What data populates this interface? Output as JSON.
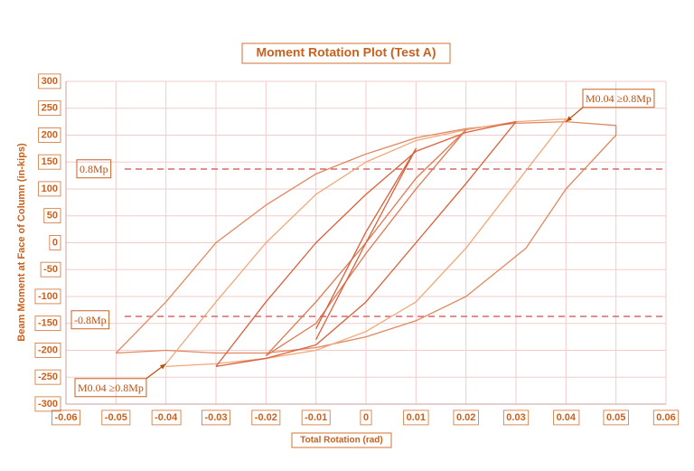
{
  "chart_data": {
    "type": "line",
    "title": "Moment Rotation Plot (Test A)",
    "xlabel": "Total Rotation (rad)",
    "ylabel": "Beam Moment at Face of Column (in-kips)",
    "xlim": [
      -0.06,
      0.06
    ],
    "ylim": [
      -300,
      300
    ],
    "xticks": [
      -0.06,
      -0.05,
      -0.04,
      -0.03,
      -0.02,
      -0.01,
      0,
      0.01,
      0.02,
      0.03,
      0.04,
      0.05,
      0.06
    ],
    "yticks": [
      -300,
      -250,
      -200,
      -150,
      -100,
      -50,
      0,
      50,
      100,
      150,
      200,
      250,
      300
    ],
    "grid": true,
    "ref_lines": [
      137,
      -137
    ],
    "ref_color": "#d46a6a",
    "series": [
      {
        "color": "#e08860",
        "x": [
          -0.05,
          -0.04,
          -0.03,
          -0.02,
          -0.01,
          0,
          0.01,
          0.02,
          0.03,
          0.04,
          0.05,
          0.05,
          0.04,
          0.032,
          0.02,
          0.01,
          0,
          -0.01,
          -0.02,
          -0.03,
          -0.04,
          -0.05
        ],
        "values": [
          -205,
          -110,
          0,
          70,
          128,
          165,
          195,
          212,
          222,
          225,
          218,
          200,
          100,
          -10,
          -100,
          -145,
          -175,
          -195,
          -205,
          -205,
          -200,
          -205
        ]
      },
      {
        "color": "#f0a878",
        "x": [
          -0.04,
          -0.03,
          -0.02,
          -0.01,
          0,
          0.01,
          0.02,
          0.03,
          0.04,
          0.03,
          0.02,
          0.01,
          0,
          -0.01,
          -0.02,
          -0.03,
          -0.04
        ],
        "values": [
          -225,
          -110,
          0,
          90,
          150,
          190,
          210,
          225,
          230,
          110,
          -10,
          -110,
          -165,
          -200,
          -215,
          -225,
          -230
        ]
      },
      {
        "color": "#d9603b",
        "x": [
          -0.03,
          -0.02,
          -0.01,
          0,
          0.01,
          0.02,
          0.03,
          0.02,
          0.01,
          0,
          -0.01,
          -0.02,
          -0.03
        ],
        "values": [
          -230,
          -110,
          0,
          90,
          170,
          205,
          225,
          110,
          0,
          -110,
          -190,
          -215,
          -230
        ]
      },
      {
        "color": "#e07850",
        "x": [
          -0.02,
          -0.01,
          0,
          0.01,
          0.02,
          0.01,
          0,
          -0.01,
          -0.02
        ],
        "values": [
          -210,
          -110,
          0,
          120,
          210,
          100,
          -20,
          -150,
          -210
        ]
      },
      {
        "color": "#d9603b",
        "x": [
          -0.01,
          0,
          0.01,
          0,
          -0.01
        ],
        "values": [
          -180,
          0,
          175,
          20,
          -160
        ]
      }
    ],
    "annotations": [
      {
        "text": "M0.04 ≥0.8Mp",
        "x": 0.04,
        "y": 225
      },
      {
        "text": "M0.04 ≥0.8Mp",
        "x": -0.04,
        "y": -225
      },
      {
        "text": "0.8Mp"
      },
      {
        "text": "-0.8Mp"
      }
    ]
  }
}
